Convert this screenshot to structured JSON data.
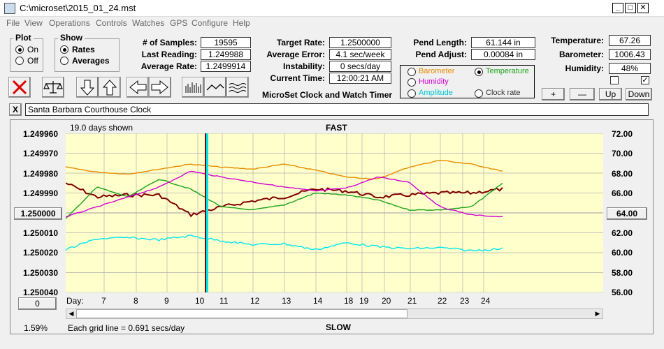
{
  "window": {
    "title": "C:\\microset\\2015_01_24.mst",
    "min": "_",
    "max": "□",
    "close": "✕"
  },
  "menu": [
    "File",
    "View",
    "Operations",
    "Controls",
    "Watches",
    "GPS",
    "Configure",
    "Help"
  ],
  "plot": {
    "title": "Plot",
    "on": "On",
    "off": "Off"
  },
  "show": {
    "title": "Show",
    "rates": "Rates",
    "averages": "Averages"
  },
  "stats": {
    "samples_label": "# of Samples:",
    "samples": "19595",
    "last_label": "Last Reading:",
    "last": "1.249988",
    "avg_label": "Average Rate:",
    "avg": "1.2499914"
  },
  "rates": {
    "target_label": "Target Rate:",
    "target": "1.2500000",
    "err_label": "Average Error:",
    "err": "4.1 sec/week",
    "inst_label": "Instability:",
    "inst": "0 secs/day",
    "time_label": "Current Time:",
    "time": "12:00:21 AM"
  },
  "app_name": "MicroSet Clock and Watch Timer",
  "pend": {
    "len_label": "Pend Length:",
    "len": "61.144 in",
    "adj_label": "Pend Adjust:",
    "adj": "0.00084 in"
  },
  "sensors": {
    "barometer": "Barometer",
    "temperature": "Temperature",
    "humidity": "Humidity",
    "amplitude": "Amplitude",
    "clock_rate": "Clock rate"
  },
  "env": {
    "temp_label": "Temperature:",
    "temp": "67.26",
    "baro_label": "Barometer:",
    "baro": "1006.43",
    "hum_label": "Humidity:",
    "hum": "48%"
  },
  "scale_buttons": {
    "plus": "+",
    "minus": "—",
    "up": "Up",
    "down": "Down"
  },
  "clock_name": "Santa Barbara Courthouse Clock",
  "close_x": "X",
  "chart": {
    "days_shown": "19.0 days shown",
    "fast": "FAST",
    "slow": "SLOW",
    "grid_note": "Each grid line = 0.691 secs/day",
    "zoom": "1.59%",
    "left_center": "1.250000",
    "right_center": "64.00",
    "bottom_btn": "0",
    "day_label": "Day:",
    "y_left_ticks": [
      "1.249960",
      "1.249970",
      "1.249980",
      "1.249990",
      "1.250010",
      "1.250020",
      "1.250030",
      "1.250040"
    ],
    "y_right_ticks": [
      "72.00",
      "70.00",
      "68.00",
      "66.00",
      "62.00",
      "60.00",
      "58.00",
      "56.00"
    ],
    "x_ticks": [
      "7",
      "8",
      "9",
      "10",
      "11",
      "12",
      "13",
      "14",
      "18",
      "19",
      "20",
      "21",
      "22",
      "23",
      "24"
    ]
  },
  "colors": {
    "plot_bg": "#ffffcc",
    "barometer": "#e88a00",
    "temperature": "#1aa31a",
    "humidity": "#d400d4",
    "amplitude": "#00e5ee",
    "clock_rate": "#800000",
    "grid": "#b0b0b0"
  },
  "chart_data": {
    "type": "line",
    "x_label": "Day",
    "x_categories": [
      "7",
      "8",
      "9",
      "10",
      "11",
      "12",
      "13",
      "14",
      "18",
      "19",
      "20",
      "21",
      "22",
      "23",
      "24"
    ],
    "y_left_range": [
      1.24996,
      1.25004
    ],
    "y_right_range": [
      56,
      72
    ],
    "series": [
      {
        "name": "Clock rate",
        "axis": "left",
        "values": [
          1.249985,
          1.249992,
          1.249991,
          1.249991,
          1.250001,
          1.249997,
          1.249994,
          1.249992,
          1.249988,
          1.249989,
          1.249992,
          1.249991,
          1.24999,
          1.24999,
          1.249988
        ]
      },
      {
        "name": "Barometer",
        "axis": "right",
        "values": [
          68.6,
          68.1,
          67.9,
          68.4,
          68.9,
          68.6,
          68.4,
          68.9,
          68.3,
          67.6,
          67.4,
          68.6,
          69.3,
          68.9,
          68.2
        ]
      },
      {
        "name": "Temperature",
        "axis": "right",
        "values": [
          63.4,
          66.6,
          65.6,
          67.4,
          66.4,
          64.6,
          64.3,
          64.8,
          66.0,
          65.8,
          65.3,
          64.3,
          64.3,
          64.6,
          67.0
        ]
      },
      {
        "name": "Humidity",
        "axis": "right",
        "values": [
          63.6,
          64.6,
          65.6,
          66.6,
          68.2,
          67.6,
          67.1,
          66.6,
          66.2,
          66.5,
          67.6,
          67.1,
          64.6,
          63.8,
          63.6
        ]
      },
      {
        "name": "Amplitude",
        "axis": "right",
        "values": [
          60.3,
          61.4,
          61.5,
          61.3,
          61.7,
          61.2,
          60.8,
          60.9,
          60.3,
          61.0,
          60.6,
          60.4,
          60.5,
          60.2,
          60.4
        ]
      }
    ]
  }
}
